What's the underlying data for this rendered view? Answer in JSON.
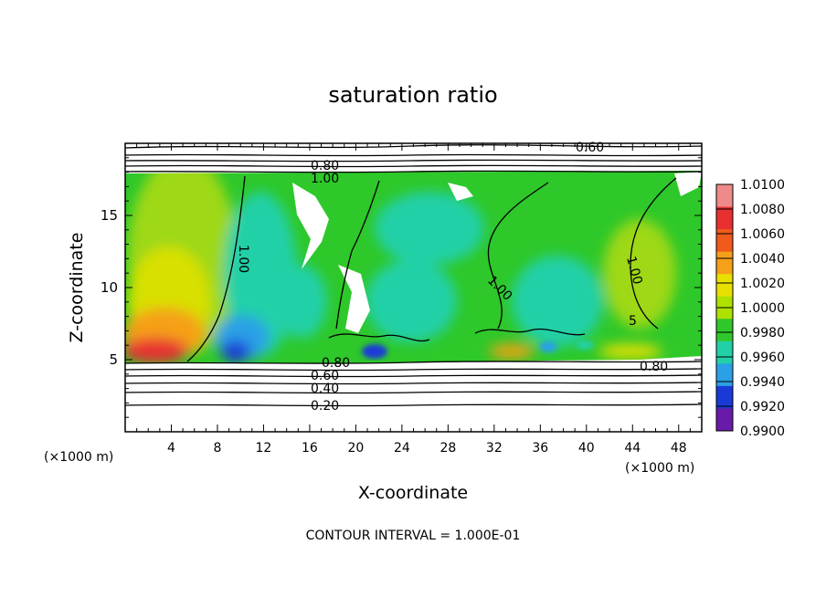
{
  "chart_data": {
    "type": "heatmap",
    "title": "saturation ratio",
    "xlabel": "X-coordinate",
    "ylabel": "Z-coordinate",
    "x_unit": "(×1000 m)",
    "x_ticks": [
      4,
      8,
      12,
      16,
      20,
      24,
      28,
      32,
      36,
      40,
      44,
      48
    ],
    "y_ticks": [
      5,
      10,
      15
    ],
    "xlim": [
      0,
      50
    ],
    "ylim": [
      0,
      20
    ],
    "colorbar": {
      "labels": [
        "1.0100",
        "1.0080",
        "1.0060",
        "1.0040",
        "1.0020",
        "1.0000",
        "0.9980",
        "0.9960",
        "0.9940",
        "0.9920",
        "0.9900"
      ],
      "colors": [
        "#ee8a8a",
        "#e83030",
        "#f05a1a",
        "#f5a018",
        "#e8e000",
        "#aee000",
        "#2ec82a",
        "#22d0a8",
        "#2aa0e6",
        "#1a3ad8",
        "#6a1aa8"
      ]
    },
    "contour_labels": [
      "0.60",
      "0.80",
      "1.00",
      "1.00",
      "1.00",
      "1.00",
      "0.80",
      "0.60",
      "0.40",
      "0.20",
      "0.80",
      "5"
    ],
    "footer": "CONTOUR INTERVAL = 1.000E-01"
  }
}
